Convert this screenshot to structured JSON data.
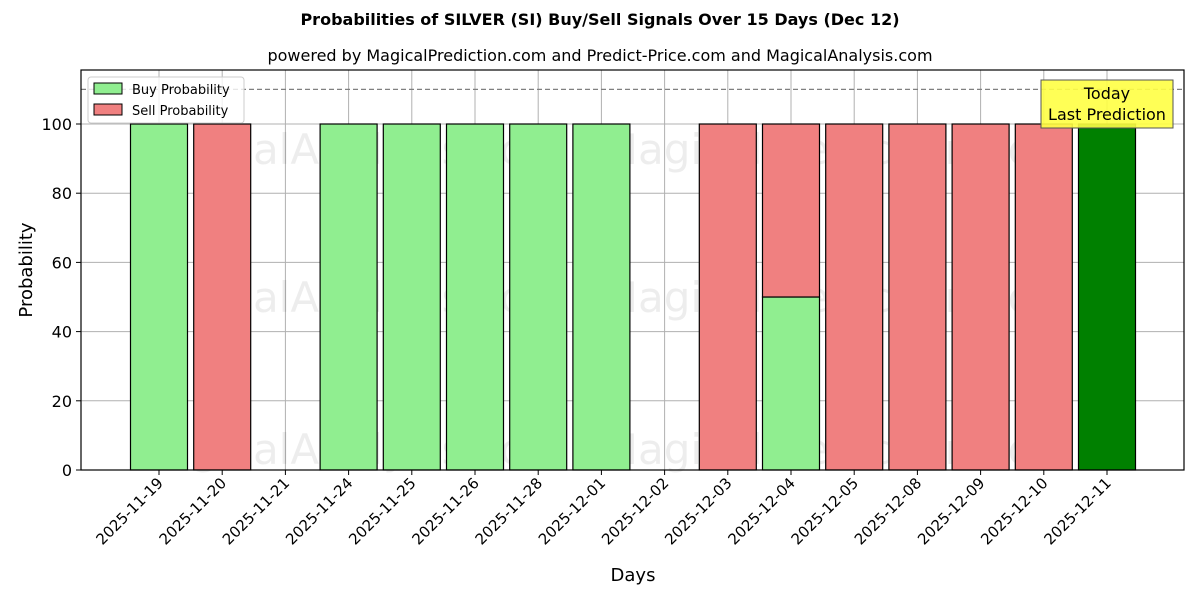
{
  "chart_data": {
    "type": "bar",
    "stacked": true,
    "title": "Probabilities of SILVER (SI) Buy/Sell Signals Over 15 Days (Dec 12)",
    "subtitle": "powered by MagicalPrediction.com and Predict-Price.com and MagicalAnalysis.com",
    "xlabel": "Days",
    "ylabel": "Probability",
    "ylim": [
      0,
      115
    ],
    "yticks": [
      0,
      20,
      40,
      60,
      80,
      100
    ],
    "grid": true,
    "legend_position": "upper left",
    "categories": [
      "2025-11-19",
      "2025-11-20",
      "2025-11-21",
      "2025-11-24",
      "2025-11-25",
      "2025-11-26",
      "2025-11-28",
      "2025-12-01",
      "2025-12-02",
      "2025-12-03",
      "2025-12-04",
      "2025-12-05",
      "2025-12-08",
      "2025-12-09",
      "2025-12-10",
      "2025-12-11"
    ],
    "series": [
      {
        "name": "Buy Probability",
        "color": "#90ee90",
        "values": [
          100,
          0,
          0,
          100,
          100,
          100,
          100,
          100,
          0,
          0,
          50,
          0,
          0,
          0,
          0,
          100
        ]
      },
      {
        "name": "Sell Probability",
        "color": "#f08080",
        "values": [
          0,
          100,
          0,
          0,
          0,
          0,
          0,
          0,
          0,
          100,
          50,
          100,
          100,
          100,
          100,
          0
        ]
      }
    ],
    "highlight": {
      "index": 15,
      "color": "#008000",
      "label": "Today\nLast Prediction"
    },
    "reference_line": {
      "y": 110,
      "style": "dashed",
      "color": "#808080"
    },
    "watermarks": [
      "MagicalAnalysis.com",
      "MagicalPrediction.com"
    ]
  },
  "annotation": {
    "line1": "Today",
    "line2": "Last Prediction"
  },
  "legend": {
    "buy": "Buy Probability",
    "sell": "Sell Probability"
  }
}
